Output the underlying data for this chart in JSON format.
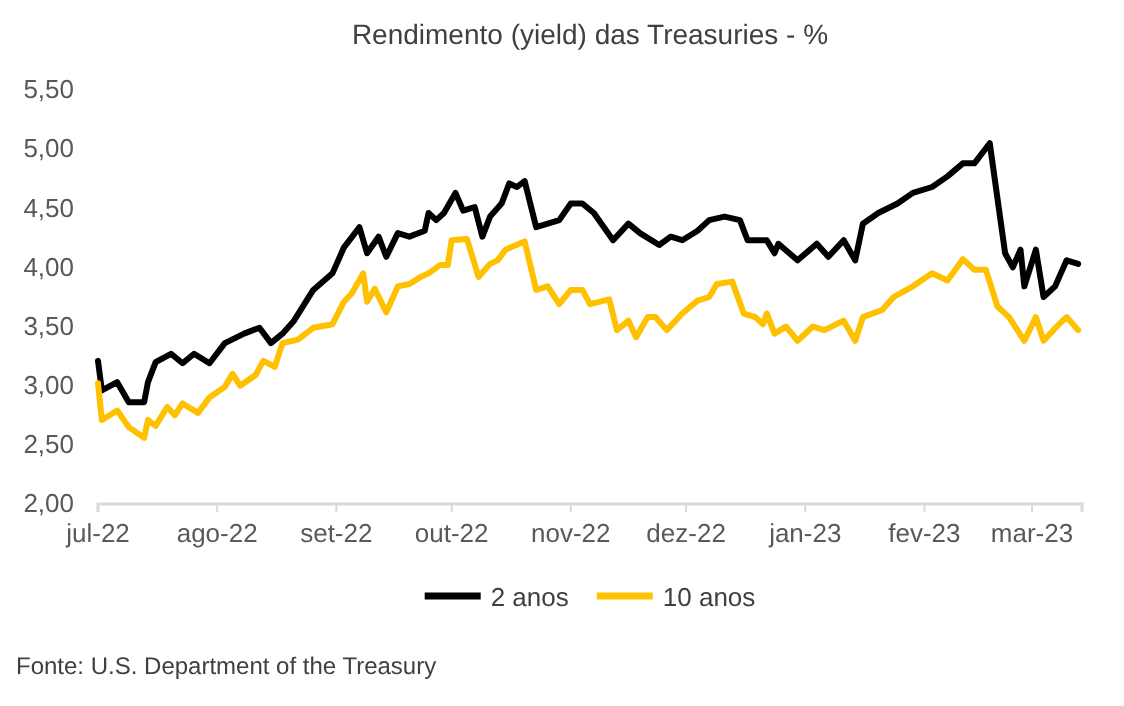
{
  "chart_data": {
    "type": "line",
    "title": "Rendimento (yield) das Treasuries - %",
    "annotations": [
      "Fonte: U.S. Department of the Treasury"
    ],
    "xlim": [
      "2022-07-01",
      "2023-03-14"
    ],
    "xticks": [
      {
        "value": "2022-07-01",
        "label": "jul-22"
      },
      {
        "value": "2022-08-01",
        "label": "ago-22"
      },
      {
        "value": "2022-09-01",
        "label": "set-22"
      },
      {
        "value": "2022-10-01",
        "label": "out-22"
      },
      {
        "value": "2022-11-01",
        "label": "nov-22"
      },
      {
        "value": "2022-12-01",
        "label": "dez-22"
      },
      {
        "value": "2023-01-01",
        "label": "jan-23"
      },
      {
        "value": "2023-02-01",
        "label": "fev-23"
      },
      {
        "value": "2023-03-01",
        "label": "mar-23"
      }
    ],
    "ylim": [
      2,
      5.5
    ],
    "yticks": [
      {
        "value": 2,
        "label": "2,00"
      },
      {
        "value": 2.5,
        "label": "2,50"
      },
      {
        "value": 3,
        "label": "3,00"
      },
      {
        "value": 3.5,
        "label": "3,50"
      },
      {
        "value": 4,
        "label": "4,00"
      },
      {
        "value": 4.5,
        "label": "4,50"
      },
      {
        "value": 5,
        "label": "5,00"
      },
      {
        "value": 5.5,
        "label": "5,50"
      }
    ],
    "grid": false,
    "legend": "bottom",
    "line_style": "solid",
    "marker": "none",
    "series": [
      {
        "name": "2 anos",
        "color": "#000000",
        "x": [
          "2022-07-01",
          "2022-07-02",
          "2022-07-06",
          "2022-07-09",
          "2022-07-13",
          "2022-07-14",
          "2022-07-16",
          "2022-07-20",
          "2022-07-23",
          "2022-07-26",
          "2022-07-30",
          "2022-08-03",
          "2022-08-08",
          "2022-08-12",
          "2022-08-15",
          "2022-08-18",
          "2022-08-21",
          "2022-08-26",
          "2022-08-31",
          "2022-09-03",
          "2022-09-07",
          "2022-09-09",
          "2022-09-12",
          "2022-09-14",
          "2022-09-17",
          "2022-09-20",
          "2022-09-24",
          "2022-09-25",
          "2022-09-27",
          "2022-09-29",
          "2022-10-02",
          "2022-10-04",
          "2022-10-07",
          "2022-10-09",
          "2022-10-11",
          "2022-10-14",
          "2022-10-16",
          "2022-10-18",
          "2022-10-20",
          "2022-10-23",
          "2022-10-26",
          "2022-10-29",
          "2022-11-01",
          "2022-11-04",
          "2022-11-07",
          "2022-11-12",
          "2022-11-16",
          "2022-11-19",
          "2022-11-24",
          "2022-11-27",
          "2022-11-30",
          "2022-12-04",
          "2022-12-07",
          "2022-12-11",
          "2022-12-15",
          "2022-12-17",
          "2022-12-22",
          "2022-12-24",
          "2022-12-25",
          "2022-12-30",
          "2023-01-04",
          "2023-01-07",
          "2023-01-11",
          "2023-01-14",
          "2023-01-16",
          "2023-01-20",
          "2023-01-25",
          "2023-01-29",
          "2023-02-03",
          "2023-02-07",
          "2023-02-11",
          "2023-02-14",
          "2023-02-18",
          "2023-02-22",
          "2023-02-24",
          "2023-02-26",
          "2023-02-27",
          "2023-03-02",
          "2023-03-04",
          "2023-03-07",
          "2023-03-10",
          "2023-03-13"
        ],
        "values": [
          3.21,
          2.96,
          3.03,
          2.86,
          2.86,
          3.03,
          3.2,
          3.27,
          3.19,
          3.27,
          3.19,
          3.36,
          3.44,
          3.49,
          3.36,
          3.44,
          3.55,
          3.81,
          3.95,
          4.17,
          4.34,
          4.12,
          4.26,
          4.09,
          4.29,
          4.26,
          4.31,
          4.46,
          4.4,
          4.46,
          4.63,
          4.48,
          4.51,
          4.26,
          4.43,
          4.54,
          4.71,
          4.68,
          4.73,
          4.34,
          4.37,
          4.4,
          4.54,
          4.54,
          4.46,
          4.23,
          4.37,
          4.29,
          4.19,
          4.26,
          4.23,
          4.31,
          4.4,
          4.43,
          4.4,
          4.23,
          4.23,
          4.12,
          4.2,
          4.06,
          4.2,
          4.09,
          4.23,
          4.06,
          4.37,
          4.46,
          4.54,
          4.63,
          4.68,
          4.77,
          4.88,
          4.88,
          5.05,
          4.12,
          4.0,
          4.15,
          3.84,
          4.15,
          3.75,
          3.84,
          4.06,
          4.03
        ]
      },
      {
        "name": "10 anos",
        "color": "#ffc000",
        "x": [
          "2022-07-01",
          "2022-07-02",
          "2022-07-06",
          "2022-07-09",
          "2022-07-13",
          "2022-07-14",
          "2022-07-16",
          "2022-07-19",
          "2022-07-21",
          "2022-07-23",
          "2022-07-27",
          "2022-07-30",
          "2022-08-03",
          "2022-08-05",
          "2022-08-07",
          "2022-08-11",
          "2022-08-13",
          "2022-08-16",
          "2022-08-18",
          "2022-08-22",
          "2022-08-26",
          "2022-08-31",
          "2022-09-03",
          "2022-09-05",
          "2022-09-08",
          "2022-09-09",
          "2022-09-11",
          "2022-09-14",
          "2022-09-17",
          "2022-09-20",
          "2022-09-23",
          "2022-09-25",
          "2022-09-28",
          "2022-09-30",
          "2022-10-01",
          "2022-10-05",
          "2022-10-08",
          "2022-10-11",
          "2022-10-13",
          "2022-10-15",
          "2022-10-20",
          "2022-10-23",
          "2022-10-26",
          "2022-10-29",
          "2022-11-01",
          "2022-11-04",
          "2022-11-06",
          "2022-11-11",
          "2022-11-13",
          "2022-11-16",
          "2022-11-18",
          "2022-11-21",
          "2022-11-23",
          "2022-11-26",
          "2022-11-30",
          "2022-12-04",
          "2022-12-07",
          "2022-12-09",
          "2022-12-13",
          "2022-12-16",
          "2022-12-19",
          "2022-12-21",
          "2022-12-22",
          "2022-12-24",
          "2022-12-27",
          "2022-12-30",
          "2023-01-03",
          "2023-01-06",
          "2023-01-11",
          "2023-01-14",
          "2023-01-16",
          "2023-01-21",
          "2023-01-24",
          "2023-01-29",
          "2023-02-03",
          "2023-02-07",
          "2023-02-11",
          "2023-02-14",
          "2023-02-17",
          "2023-02-20",
          "2023-02-23",
          "2023-02-27",
          "2023-03-02",
          "2023-03-04",
          "2023-03-08",
          "2023-03-10",
          "2023-03-13"
        ],
        "values": [
          3.02,
          2.71,
          2.79,
          2.65,
          2.56,
          2.71,
          2.66,
          2.82,
          2.75,
          2.85,
          2.77,
          2.9,
          2.99,
          3.1,
          3.0,
          3.09,
          3.21,
          3.16,
          3.36,
          3.39,
          3.49,
          3.52,
          3.71,
          3.78,
          3.95,
          3.71,
          3.82,
          3.62,
          3.84,
          3.86,
          3.92,
          3.95,
          4.02,
          4.02,
          4.23,
          4.24,
          3.92,
          4.03,
          4.06,
          4.15,
          4.22,
          3.81,
          3.84,
          3.69,
          3.81,
          3.81,
          3.69,
          3.73,
          3.47,
          3.55,
          3.41,
          3.58,
          3.58,
          3.47,
          3.61,
          3.72,
          3.75,
          3.86,
          3.88,
          3.61,
          3.58,
          3.52,
          3.61,
          3.44,
          3.5,
          3.38,
          3.5,
          3.47,
          3.55,
          3.38,
          3.58,
          3.64,
          3.75,
          3.84,
          3.95,
          3.89,
          4.07,
          3.98,
          3.98,
          3.67,
          3.58,
          3.38,
          3.58,
          3.38,
          3.52,
          3.58,
          3.47
        ]
      }
    ]
  }
}
